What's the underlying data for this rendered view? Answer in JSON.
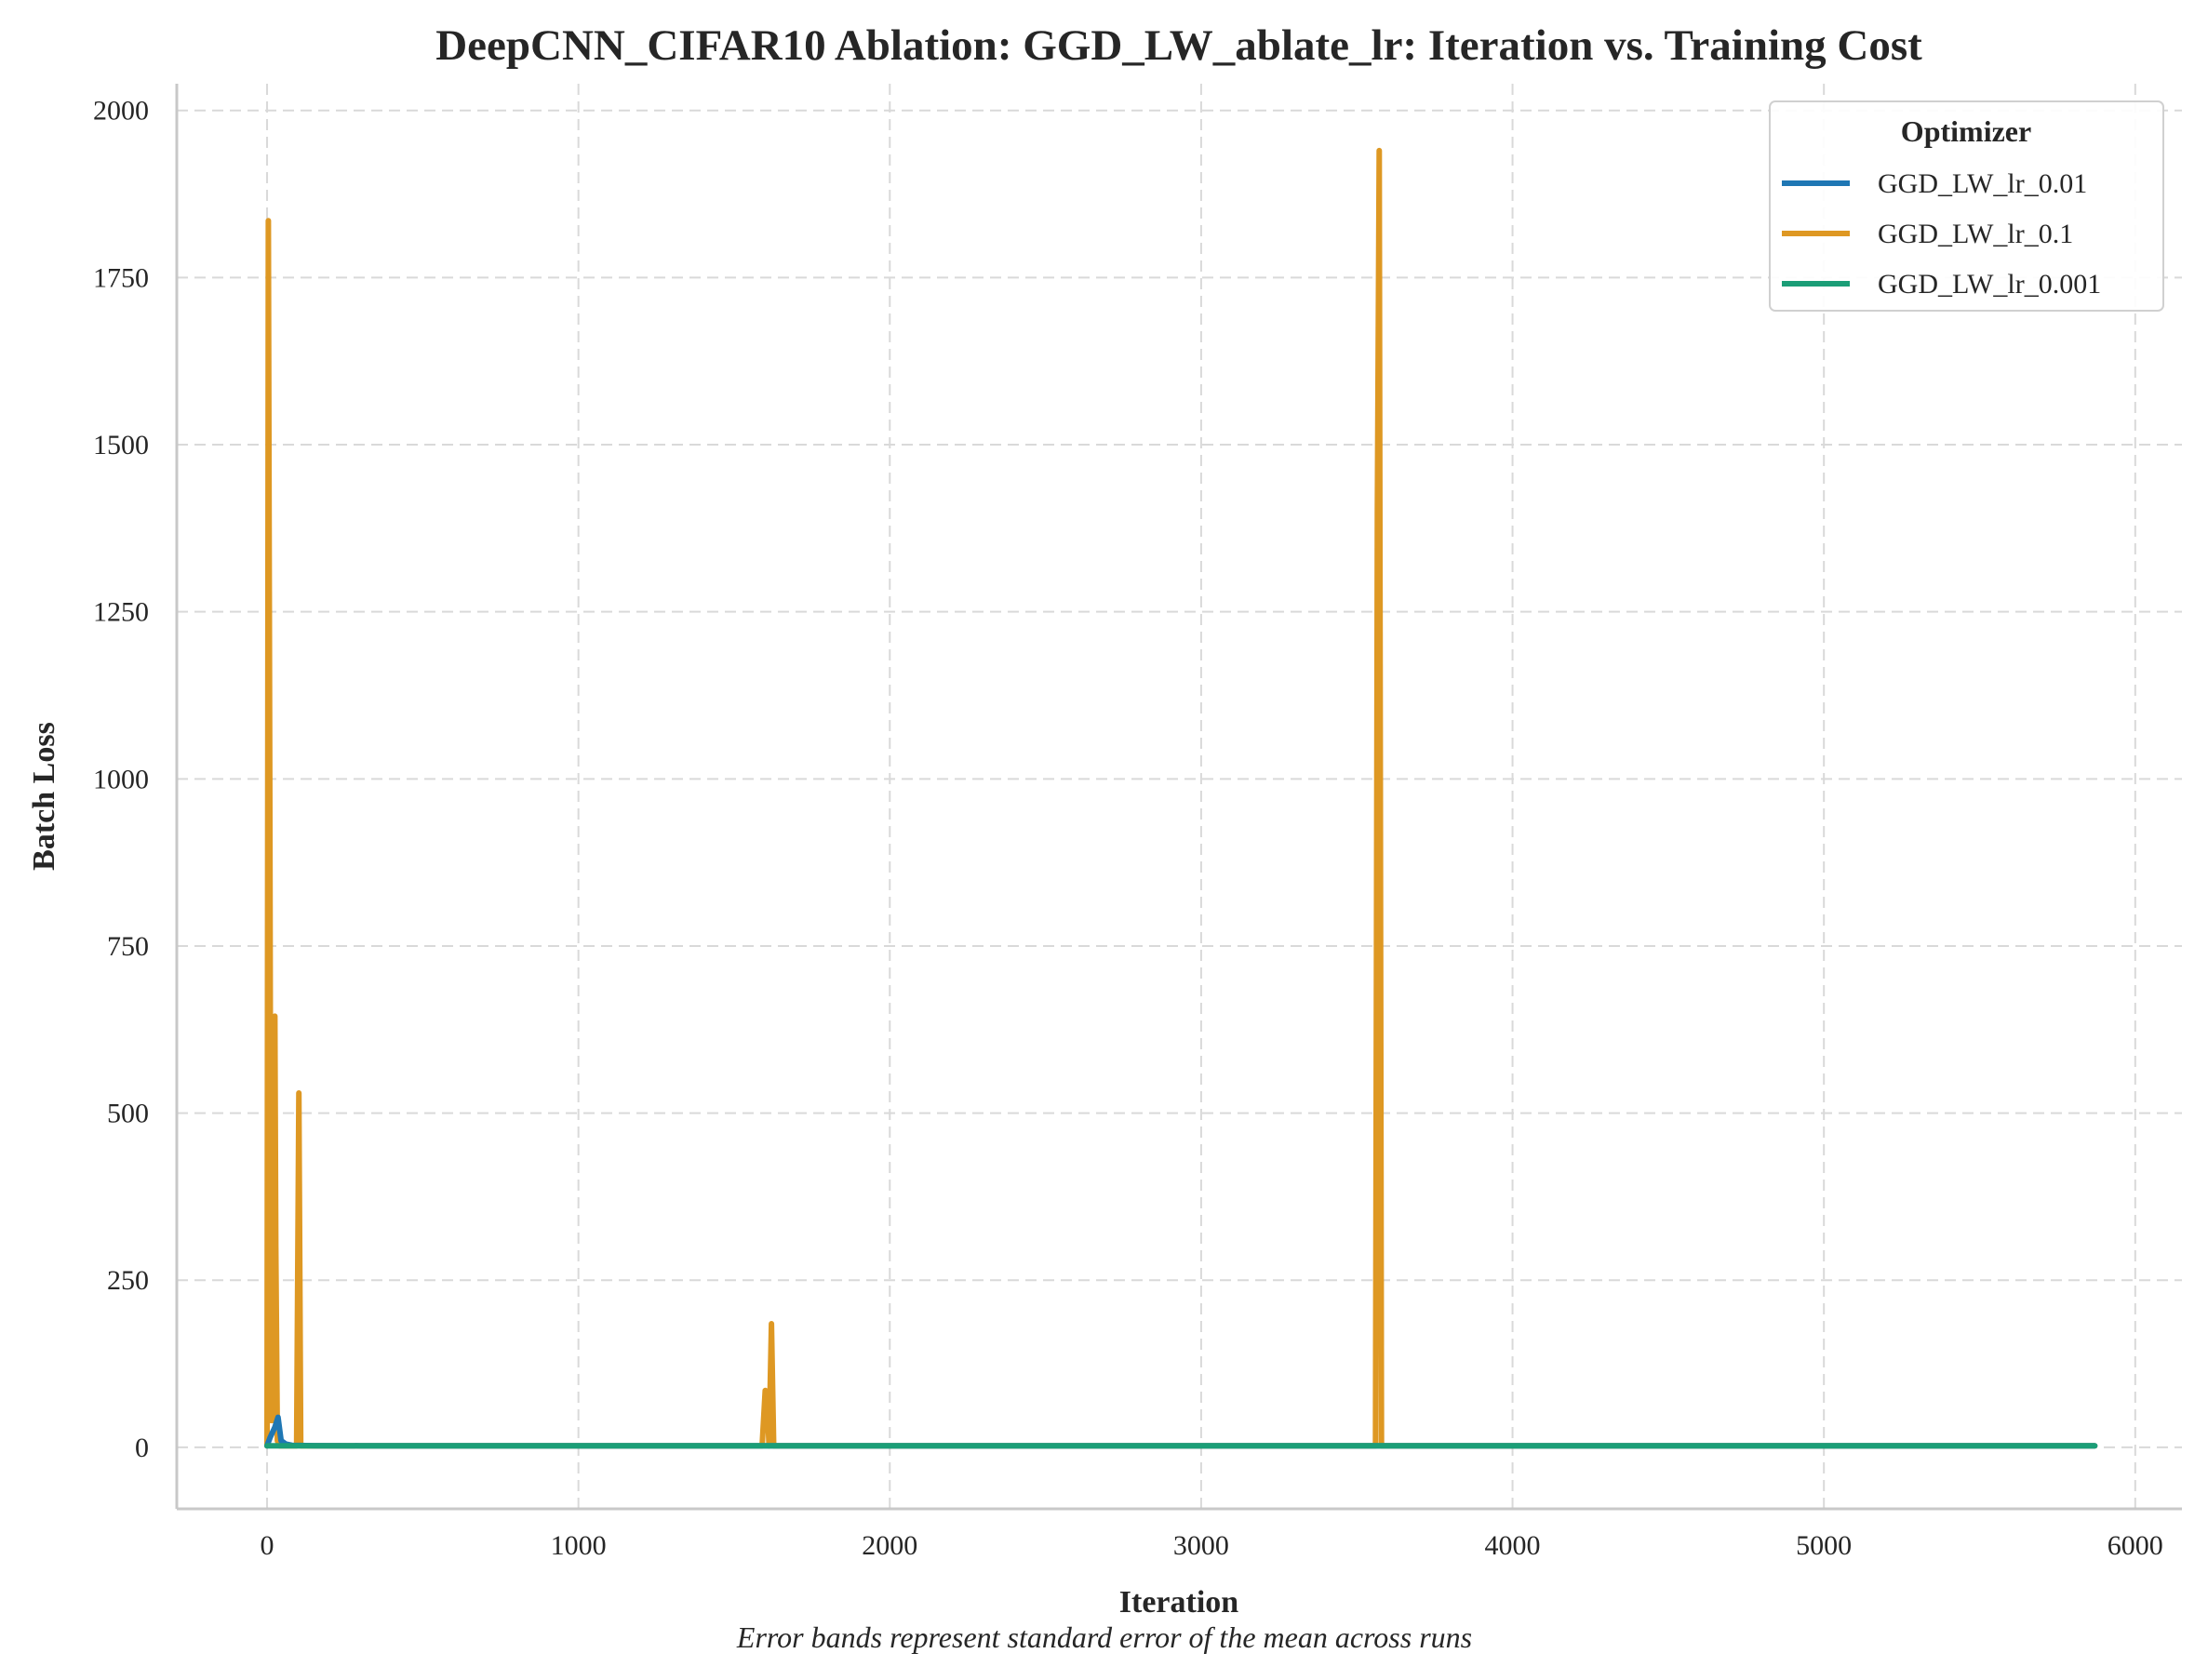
{
  "chart_data": {
    "type": "line",
    "title": "DeepCNN_CIFAR10 Ablation: GGD_LW_ablate_lr: Iteration vs. Training Cost",
    "xlabel": "Iteration",
    "ylabel": "Batch Loss",
    "caption": "Error bands represent standard error of the mean across runs",
    "xlim": [
      -290,
      6150
    ],
    "ylim": [
      -92,
      2040
    ],
    "x_ticks": [
      0,
      1000,
      2000,
      3000,
      4000,
      5000,
      6000
    ],
    "y_ticks": [
      0,
      250,
      500,
      750,
      1000,
      1250,
      1500,
      1750,
      2000
    ],
    "grid": true,
    "legend": {
      "title": "Optimizer",
      "placement": "top-right"
    },
    "series": [
      {
        "name": "GGD_LW_lr_0.01",
        "color": "#1f77b4",
        "points": [
          [
            0,
            2.3
          ],
          [
            10,
            15
          ],
          [
            25,
            30
          ],
          [
            35,
            45
          ],
          [
            45,
            10
          ],
          [
            60,
            5
          ],
          [
            80,
            3
          ],
          [
            150,
            2.5
          ],
          [
            300,
            2.4
          ],
          [
            5870,
            2.2
          ]
        ]
      },
      {
        "name": "GGD_LW_lr_0.1",
        "color": "#de9823",
        "points": [
          [
            0,
            2.3
          ],
          [
            4,
            1835
          ],
          [
            9,
            900
          ],
          [
            13,
            40
          ],
          [
            17,
            350
          ],
          [
            20,
            40
          ],
          [
            25,
            645
          ],
          [
            28,
            300
          ],
          [
            33,
            10
          ],
          [
            40,
            2.3
          ],
          [
            95,
            2.3
          ],
          [
            102,
            530
          ],
          [
            108,
            2.3
          ],
          [
            1590,
            2.3
          ],
          [
            1600,
            85
          ],
          [
            1606,
            70
          ],
          [
            1612,
            2.3
          ],
          [
            1620,
            185
          ],
          [
            1627,
            2.3
          ],
          [
            3560,
            2.3
          ],
          [
            3566,
            1400
          ],
          [
            3572,
            1940
          ],
          [
            3579,
            2.3
          ],
          [
            5870,
            2.3
          ]
        ]
      },
      {
        "name": "GGD_LW_lr_0.001",
        "color": "#1b9e77",
        "points": [
          [
            0,
            2.3
          ],
          [
            1000,
            2.3
          ],
          [
            2000,
            2.3
          ],
          [
            3000,
            2.3
          ],
          [
            4000,
            2.3
          ],
          [
            5000,
            2.3
          ],
          [
            5870,
            2.3
          ]
        ]
      }
    ]
  }
}
